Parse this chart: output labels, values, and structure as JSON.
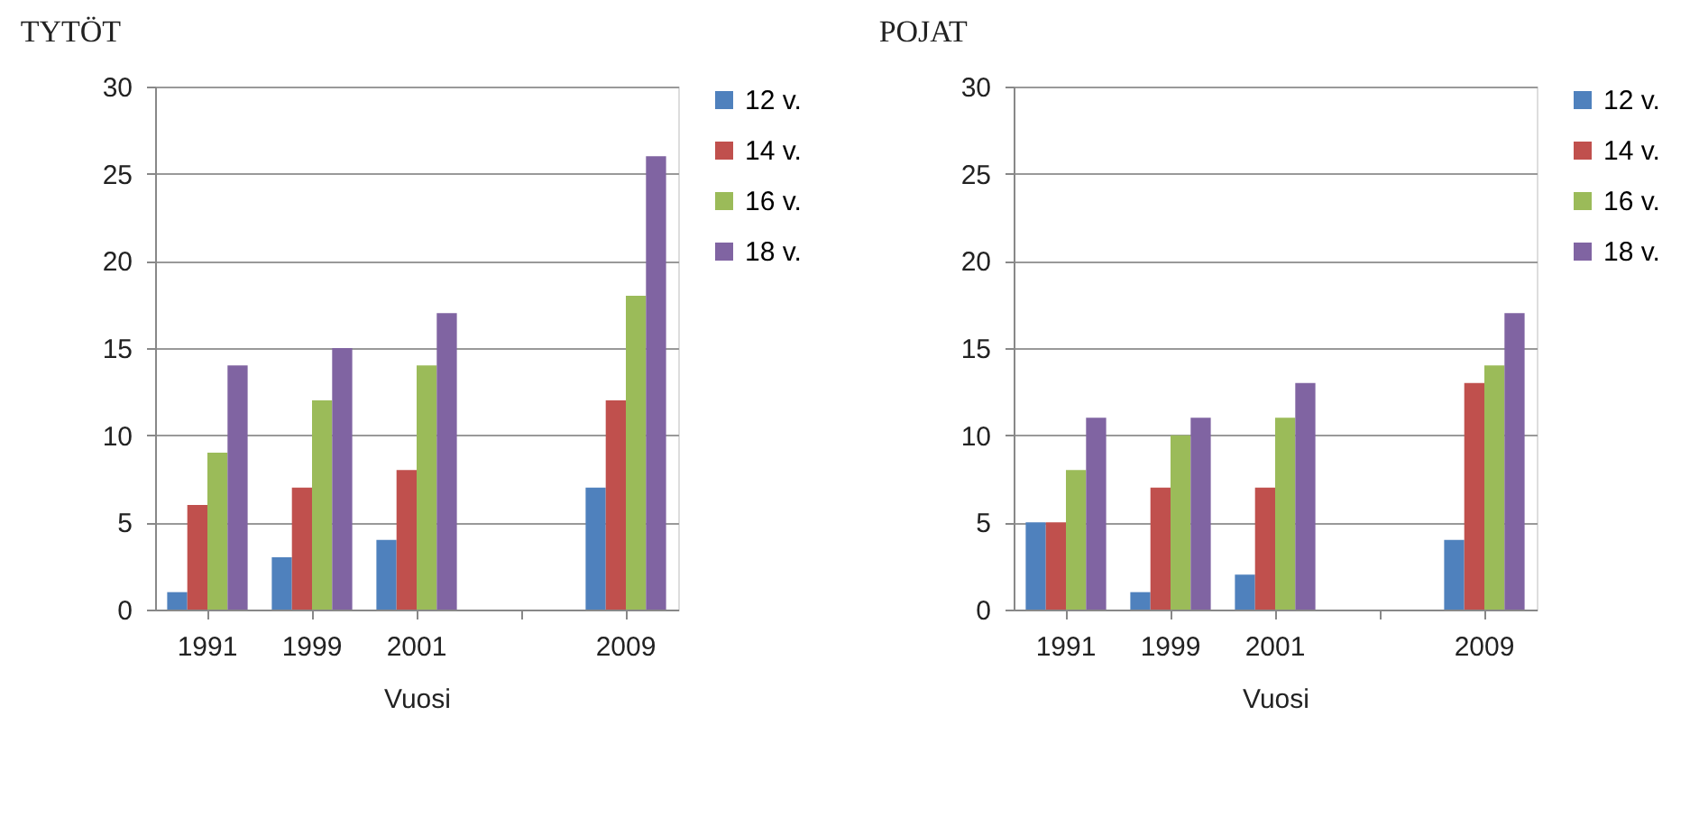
{
  "chart_data": [
    {
      "type": "bar",
      "title": "TYTÖT",
      "xlabel": "Vuosi",
      "categories": [
        "1991",
        "1999",
        "2001",
        null,
        "2009"
      ],
      "ylim": [
        0,
        30
      ],
      "yticks": [
        0,
        5,
        10,
        15,
        20,
        25,
        30
      ],
      "grid": "y",
      "legend": "right",
      "series": [
        {
          "name": "12 v.",
          "color": "#4f81bd",
          "values": [
            1,
            3,
            4,
            null,
            7
          ]
        },
        {
          "name": "14 v.",
          "color": "#c0504d",
          "values": [
            6,
            7,
            8,
            null,
            12
          ]
        },
        {
          "name": "16 v.",
          "color": "#9bbb59",
          "values": [
            9,
            12,
            14,
            null,
            18
          ]
        },
        {
          "name": "18 v.",
          "color": "#8064a2",
          "values": [
            14,
            15,
            17,
            null,
            26
          ]
        }
      ]
    },
    {
      "type": "bar",
      "title": "POJAT",
      "xlabel": "Vuosi",
      "categories": [
        "1991",
        "1999",
        "2001",
        null,
        "2009"
      ],
      "ylim": [
        0,
        30
      ],
      "yticks": [
        0,
        5,
        10,
        15,
        20,
        25,
        30
      ],
      "grid": "y",
      "legend": "right",
      "series": [
        {
          "name": "12 v.",
          "color": "#4f81bd",
          "values": [
            5,
            1,
            2,
            null,
            4
          ]
        },
        {
          "name": "14 v.",
          "color": "#c0504d",
          "values": [
            5,
            7,
            7,
            null,
            13
          ]
        },
        {
          "name": "16 v.",
          "color": "#9bbb59",
          "values": [
            8,
            10,
            11,
            null,
            14
          ]
        },
        {
          "name": "18 v.",
          "color": "#8064a2",
          "values": [
            11,
            11,
            13,
            null,
            17
          ]
        }
      ]
    }
  ]
}
